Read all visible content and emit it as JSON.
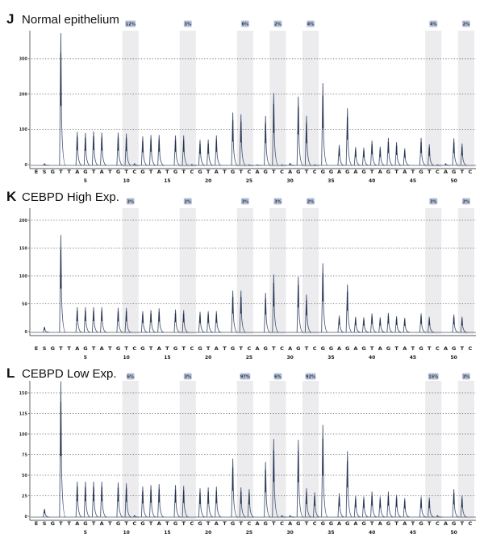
{
  "chart_data": [
    {
      "type": "line",
      "panel_letter": "J",
      "title": "Normal epithelium",
      "ylabel": "",
      "xlabel": "",
      "ylim": [
        0,
        375
      ],
      "yticks": [
        "0",
        "100",
        "200",
        "300"
      ],
      "ytick_values": [
        0,
        100,
        200,
        300
      ],
      "grid": "dotted horizontal",
      "dispensation": [
        "E",
        "S",
        "G",
        "T",
        "T",
        "A",
        "G",
        "T",
        "A",
        "T",
        "G",
        "T",
        "C",
        "G",
        "T",
        "A",
        "T",
        "G",
        "T",
        "C",
        "G",
        "T",
        "A",
        "T",
        "G",
        "T",
        "C",
        "A",
        "G",
        "T",
        "C",
        "A",
        "G",
        "T",
        "C",
        "G",
        "G",
        "A",
        "G",
        "A",
        "G",
        "T",
        "A",
        "G",
        "T",
        "A",
        "T",
        "G",
        "T",
        "C",
        "A",
        "G",
        "T",
        "C"
      ],
      "position_labels": [
        "5",
        "10",
        "15",
        "20",
        "25",
        "30",
        "35",
        "40",
        "45",
        "50"
      ],
      "position_values": [
        5,
        10,
        15,
        20,
        25,
        30,
        35,
        40,
        45,
        50
      ],
      "peaks": [
        0,
        5,
        0,
        375,
        0,
        95,
        92,
        97,
        93,
        0,
        93,
        90,
        5,
        82,
        86,
        86,
        0,
        85,
        85,
        3,
        72,
        73,
        85,
        0,
        150,
        145,
        2,
        2,
        140,
        205,
        2,
        6,
        195,
        140,
        2,
        233,
        0,
        58,
        162,
        52,
        50,
        70,
        53,
        78,
        66,
        48,
        0,
        78,
        60,
        2,
        5,
        77,
        62,
        0
      ],
      "cpg_sites": [
        [
          10,
          11
        ],
        [
          17,
          18
        ],
        [
          24,
          25
        ],
        [
          28,
          29
        ],
        [
          32,
          33
        ],
        [
          47,
          48
        ],
        [
          51,
          52
        ]
      ],
      "badges": [
        "12%",
        "3%",
        "6%",
        "2%",
        "4%",
        "4%",
        "2%"
      ]
    },
    {
      "type": "line",
      "panel_letter": "K",
      "title": "CEBPD High Exp.",
      "ylabel": "",
      "xlabel": "",
      "ylim": [
        0,
        210
      ],
      "yticks": [
        "0",
        "50",
        "100",
        "150",
        "200"
      ],
      "ytick_values": [
        0,
        50,
        100,
        150,
        200
      ],
      "grid": "dotted horizontal",
      "dispensation": [
        "E",
        "S",
        "G",
        "T",
        "T",
        "A",
        "G",
        "T",
        "A",
        "T",
        "G",
        "T",
        "C",
        "G",
        "T",
        "A",
        "T",
        "G",
        "T",
        "C",
        "G",
        "T",
        "A",
        "T",
        "G",
        "T",
        "C",
        "A",
        "G",
        "T",
        "C",
        "A",
        "G",
        "T",
        "C",
        "G",
        "G",
        "A",
        "G",
        "A",
        "G",
        "T",
        "A",
        "G",
        "T",
        "A",
        "T",
        "G",
        "T",
        "C",
        "A",
        "G",
        "T",
        "C"
      ],
      "position_labels": [
        "5",
        "10",
        "15",
        "20",
        "25",
        "30",
        "35",
        "40",
        "45",
        "50"
      ],
      "position_values": [
        5,
        10,
        15,
        20,
        25,
        30,
        35,
        40,
        45,
        50
      ],
      "peaks": [
        0,
        10,
        0,
        175,
        0,
        45,
        45,
        45,
        45,
        0,
        44,
        44,
        0,
        38,
        40,
        43,
        0,
        41,
        40,
        0,
        37,
        38,
        38,
        0,
        75,
        75,
        0,
        0,
        71,
        104,
        0,
        0,
        100,
        68,
        0,
        124,
        0,
        30,
        86,
        28,
        27,
        34,
        27,
        35,
        29,
        26,
        0,
        34,
        28,
        0,
        0,
        32,
        28,
        0
      ],
      "cpg_sites": [
        [
          10,
          11
        ],
        [
          17,
          18
        ],
        [
          24,
          25
        ],
        [
          28,
          29
        ],
        [
          32,
          33
        ],
        [
          47,
          48
        ],
        [
          51,
          52
        ]
      ],
      "badges": [
        "3%",
        "2%",
        "3%",
        "3%",
        "2%",
        "3%",
        "2%"
      ]
    },
    {
      "type": "line",
      "panel_letter": "L",
      "title": "CEBPD Low Exp.",
      "ylabel": "",
      "xlabel": "",
      "ylim": [
        0,
        165
      ],
      "yticks": [
        "0",
        "25",
        "50",
        "75",
        "100",
        "125",
        "150"
      ],
      "ytick_values": [
        0,
        25,
        50,
        75,
        100,
        125,
        150
      ],
      "grid": "dotted horizontal",
      "dispensation": [
        "E",
        "S",
        "G",
        "T",
        "T",
        "A",
        "G",
        "T",
        "A",
        "T",
        "G",
        "T",
        "C",
        "G",
        "T",
        "A",
        "T",
        "G",
        "T",
        "C",
        "G",
        "T",
        "A",
        "T",
        "G",
        "T",
        "C",
        "A",
        "G",
        "T",
        "C",
        "A",
        "G",
        "T",
        "C",
        "G",
        "G",
        "A",
        "G",
        "A",
        "G",
        "T",
        "A",
        "G",
        "T",
        "A",
        "T",
        "G",
        "T",
        "C",
        "A",
        "G",
        "T",
        "C"
      ],
      "position_labels": [
        "5",
        "10",
        "15",
        "20",
        "25",
        "30",
        "35",
        "40",
        "45",
        "50"
      ],
      "position_values": [
        5,
        10,
        15,
        20,
        25,
        30,
        35,
        40,
        45,
        50
      ],
      "peaks": [
        0,
        10,
        0,
        165,
        0,
        43,
        43,
        43,
        43,
        0,
        42,
        41,
        2,
        37,
        39,
        40,
        0,
        39,
        38,
        0,
        35,
        36,
        37,
        0,
        71,
        36,
        34,
        0,
        67,
        95,
        2,
        2,
        94,
        35,
        30,
        112,
        0,
        29,
        80,
        26,
        25,
        31,
        25,
        31,
        27,
        23,
        0,
        25,
        24,
        2,
        0,
        34,
        26,
        0
      ],
      "cpg_sites": [
        [
          10,
          11
        ],
        [
          17,
          18
        ],
        [
          24,
          25
        ],
        [
          28,
          29
        ],
        [
          32,
          33
        ],
        [
          47,
          48
        ],
        [
          51,
          52
        ]
      ],
      "badges": [
        "6%",
        "3%",
        "97%",
        "6%",
        "92%",
        "15%",
        "3%"
      ]
    }
  ],
  "colors": {
    "trace": "#4a5874",
    "peak_dark": "#1f2d4d",
    "band": "#ececee",
    "badge": "#b9c3d6",
    "grid": "#555555"
  }
}
